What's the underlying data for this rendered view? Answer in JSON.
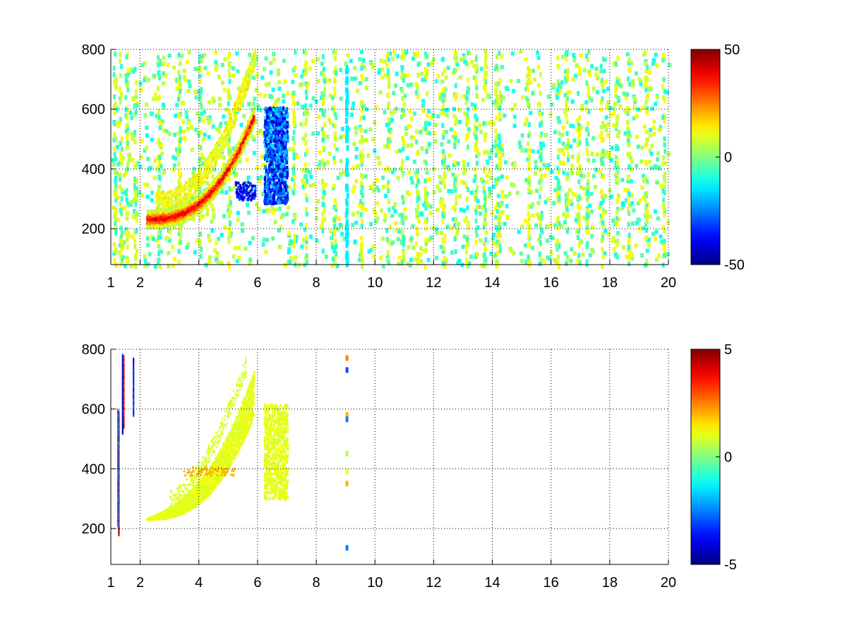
{
  "figure": {
    "background": "#ffffff"
  },
  "chart_data": [
    {
      "type": "heatmap",
      "title": "",
      "xlabel": "",
      "ylabel": "",
      "xlim": [
        1,
        20
      ],
      "ylim": [
        80,
        800
      ],
      "x_ticks": [
        1,
        2,
        4,
        6,
        8,
        10,
        12,
        14,
        16,
        18,
        20
      ],
      "x_tick_labels": [
        "1",
        "2",
        "4",
        "6",
        "8",
        "10",
        "12",
        "14",
        "16",
        "18",
        "20"
      ],
      "y_ticks": [
        200,
        400,
        600,
        800
      ],
      "y_tick_labels": [
        "200",
        "400",
        "600",
        "800"
      ],
      "grid": true,
      "colormap": "jet",
      "colorbar": {
        "min": -50,
        "max": 50,
        "ticks": [
          -50,
          0,
          50
        ],
        "tick_labels": [
          "-50",
          "0",
          "50"
        ]
      },
      "features": [
        {
          "name": "main ridge",
          "from": [
            2.2,
            235
          ],
          "to": [
            5.85,
            580
          ],
          "peak_value": 45
        },
        {
          "name": "negative band",
          "x_range": [
            6.2,
            7.0
          ],
          "y_range": [
            290,
            610
          ],
          "peak_value": -45
        },
        {
          "name": "upper arc",
          "from": [
            2.5,
            290
          ],
          "to": [
            5.9,
            790
          ],
          "peak_value": 15
        },
        {
          "name": "scatter",
          "x_range": [
            1,
            20
          ],
          "y_range": [
            80,
            800
          ],
          "value_range": [
            -15,
            15
          ]
        }
      ]
    },
    {
      "type": "heatmap",
      "title": "",
      "xlabel": "",
      "ylabel": "",
      "xlim": [
        1,
        20
      ],
      "ylim": [
        80,
        800
      ],
      "x_ticks": [
        1,
        2,
        4,
        6,
        8,
        10,
        12,
        14,
        16,
        18,
        20
      ],
      "x_tick_labels": [
        "1",
        "2",
        "4",
        "6",
        "8",
        "10",
        "12",
        "14",
        "16",
        "18",
        "20"
      ],
      "y_ticks": [
        200,
        400,
        600,
        800
      ],
      "y_tick_labels": [
        "200",
        "400",
        "600",
        "800"
      ],
      "grid": true,
      "colormap": "jet",
      "colorbar": {
        "min": -5,
        "max": 5,
        "ticks": [
          -5,
          0,
          5
        ],
        "tick_labels": [
          "-5",
          "0",
          "5"
        ]
      },
      "features": [
        {
          "name": "main ridge region",
          "from": [
            2.2,
            235
          ],
          "to": [
            5.85,
            580
          ],
          "value": 1
        },
        {
          "name": "right band",
          "x_range": [
            6.2,
            7.0
          ],
          "y_range": [
            300,
            620
          ],
          "value": 1
        },
        {
          "name": "yellow patch",
          "x_range": [
            3.4,
            5.2
          ],
          "y_range": [
            380,
            410
          ],
          "value": 2
        },
        {
          "name": "left streaks",
          "x_range": [
            1.2,
            1.8
          ],
          "y_range": [
            200,
            780
          ],
          "value_range": [
            -5,
            5
          ]
        },
        {
          "name": "column near 9",
          "x": 9,
          "y_range": [
            140,
            780
          ],
          "value_range": [
            -3,
            3
          ]
        }
      ]
    }
  ]
}
